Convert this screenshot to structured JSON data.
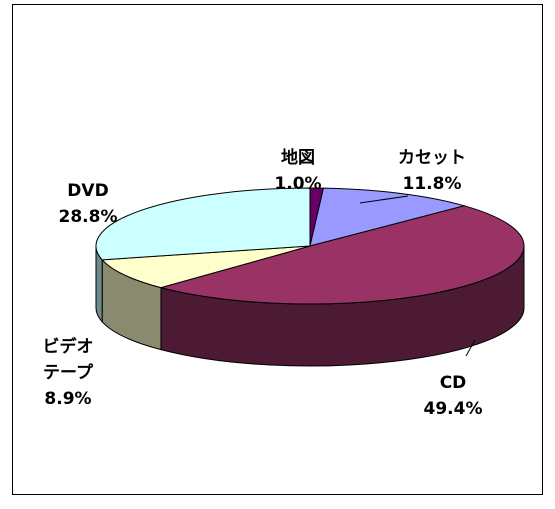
{
  "chart_data": {
    "type": "pie",
    "style": "3d-exploded-none",
    "title": "",
    "slices": [
      {
        "name": "地図",
        "value": 1.0,
        "label": "1.0%",
        "color": "#660066",
        "side_color": "#330033"
      },
      {
        "name": "カセット",
        "value": 11.8,
        "label": "11.8%",
        "color": "#9999FF",
        "side_color": "#4D4D80"
      },
      {
        "name": "CD",
        "value": 49.4,
        "label": "49.4%",
        "color": "#993366",
        "side_color": "#4C1A33"
      },
      {
        "name": "ビデオ\nテープ",
        "value": 8.9,
        "label": "8.9%",
        "color": "#FFFFCC",
        "side_color": "#8A8A6E"
      },
      {
        "name": "DVD",
        "value": 28.8,
        "label": "28.8%",
        "color": "#CCFFFF",
        "side_color": "#6E8A8A"
      }
    ]
  }
}
